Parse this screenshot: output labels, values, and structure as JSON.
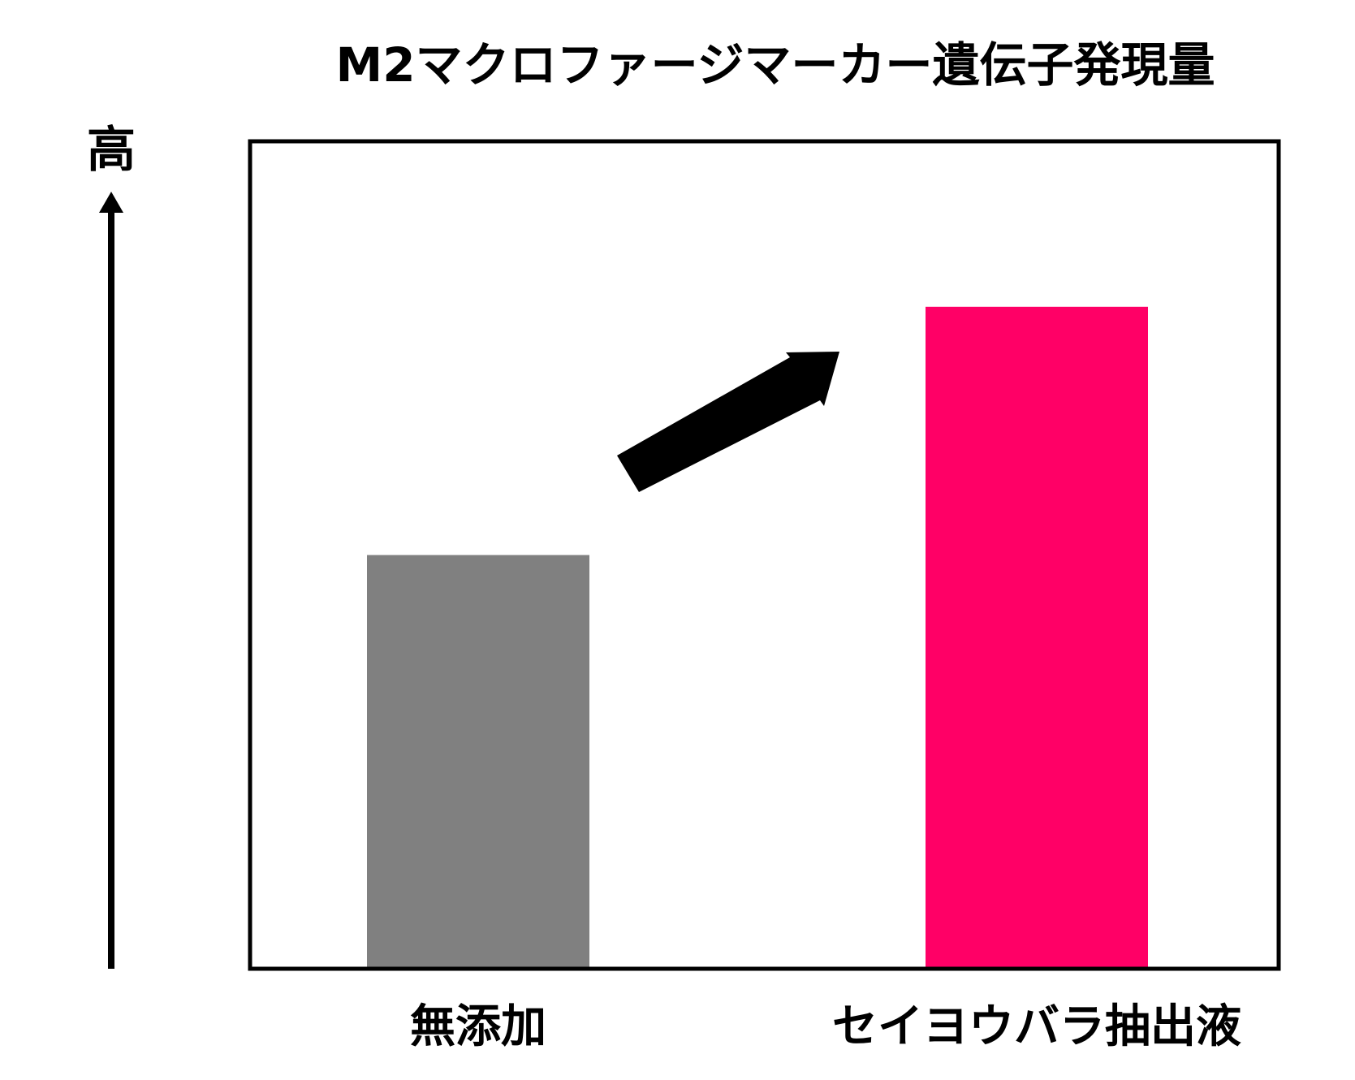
{
  "chart_data": {
    "type": "bar",
    "title": "M2マクロファージマーカー遺伝子発現量",
    "categories": [
      "無添加",
      "セイヨウバラ抽出液"
    ],
    "values": [
      0.5,
      0.8
    ],
    "ylim": [
      0,
      1
    ],
    "y_axis_high_label": "高",
    "bar_colors": [
      "#808080",
      "#ff0066"
    ],
    "annotation": "increase-arrow",
    "grid": false
  }
}
